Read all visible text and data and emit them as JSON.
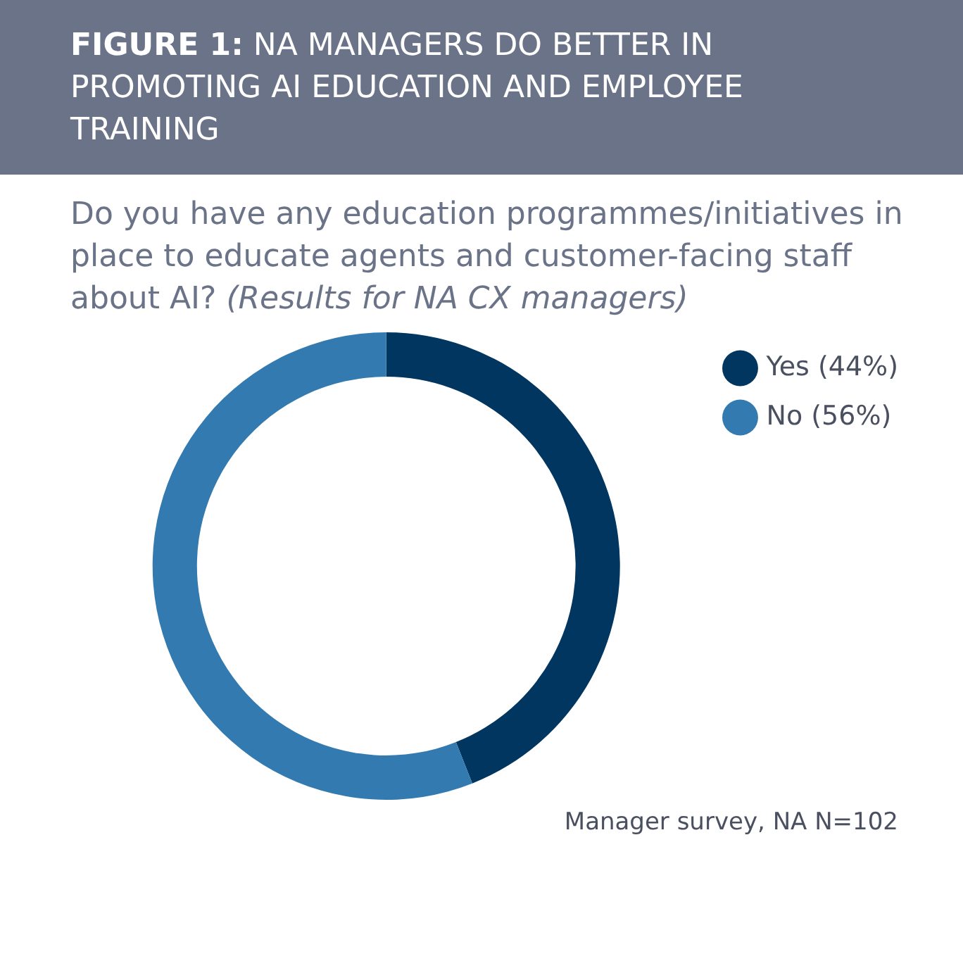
{
  "chart_data": {
    "type": "donut",
    "title": "FIGURE 1: NA MANAGERS DO BETTER IN PROMOTING AI EDUCATION AND EMPLOYEE TRAINING",
    "subtitle": "Do you have any education programmes/initiatives in place to educate agents and customer-facing staff about AI? (Results for NA CX managers)",
    "categories": [
      "Yes",
      "No"
    ],
    "values": [
      44,
      56
    ],
    "value_labels": [
      "(44%)",
      "(56%)"
    ],
    "colors": [
      "#003660",
      "#337ab0"
    ],
    "legend": "top right",
    "annotations": [
      "Manager survey, NA N=102"
    ]
  }
}
